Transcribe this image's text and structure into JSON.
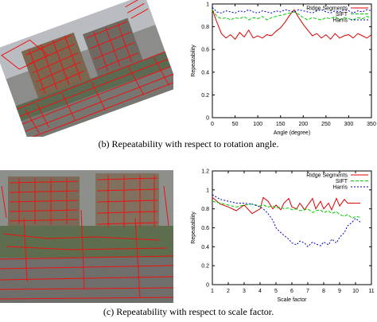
{
  "captions": {
    "b": "(b)  Repeatability with respect to rotation angle.",
    "c": "(c)  Repeatability with respect to scale factor."
  },
  "colors": {
    "ridge": "#dd0000",
    "sift": "#00cc00",
    "harris": "#0000cc"
  },
  "chart_data": [
    {
      "type": "line",
      "xlabel": "Angle (degree)",
      "ylabel": "Repeatability",
      "xlim": [
        0,
        350
      ],
      "ylim": [
        0,
        1
      ],
      "xticks": [
        "0",
        "50",
        "100",
        "150",
        "200",
        "250",
        "300",
        "350"
      ],
      "xtick_values": [
        0,
        50,
        100,
        150,
        200,
        250,
        300,
        350
      ],
      "yticks": [
        "0",
        "0.2",
        "0.4",
        "0.6",
        "0.8",
        "1"
      ],
      "ytick_values": [
        0,
        0.2,
        0.4,
        0.6,
        0.8,
        1.0
      ],
      "legend_position": "top-right",
      "x": [
        0,
        10,
        20,
        30,
        40,
        50,
        60,
        70,
        80,
        90,
        100,
        110,
        120,
        130,
        140,
        150,
        160,
        170,
        180,
        190,
        200,
        210,
        220,
        230,
        240,
        250,
        260,
        270,
        280,
        290,
        300,
        310,
        320,
        330,
        340,
        350
      ],
      "series": [
        {
          "name": "Ridge Segments",
          "color_key": "ridge",
          "dash": "",
          "values": [
            0.95,
            0.84,
            0.74,
            0.7,
            0.73,
            0.69,
            0.75,
            0.71,
            0.77,
            0.7,
            0.72,
            0.7,
            0.73,
            0.72,
            0.76,
            0.79,
            0.84,
            0.9,
            0.95,
            0.88,
            0.82,
            0.77,
            0.72,
            0.74,
            0.7,
            0.73,
            0.69,
            0.74,
            0.7,
            0.72,
            0.73,
            0.7,
            0.74,
            0.72,
            0.7,
            0.73
          ]
        },
        {
          "name": "SIFT",
          "color_key": "sift",
          "dash": "4,2",
          "values": [
            0.95,
            0.89,
            0.87,
            0.88,
            0.86,
            0.88,
            0.87,
            0.89,
            0.86,
            0.88,
            0.87,
            0.89,
            0.86,
            0.88,
            0.89,
            0.9,
            0.91,
            0.92,
            0.93,
            0.91,
            0.88,
            0.86,
            0.88,
            0.87,
            0.86,
            0.88,
            0.87,
            0.89,
            0.86,
            0.88,
            0.87,
            0.86,
            0.88,
            0.87,
            0.89,
            0.88
          ]
        },
        {
          "name": "Harris",
          "color_key": "harris",
          "dash": "2,2",
          "values": [
            0.97,
            0.93,
            0.92,
            0.94,
            0.93,
            0.92,
            0.94,
            0.93,
            0.95,
            0.93,
            0.92,
            0.94,
            0.93,
            0.92,
            0.94,
            0.93,
            0.95,
            0.94,
            0.93,
            0.95,
            0.94,
            0.93,
            0.92,
            0.94,
            0.95,
            0.93,
            0.92,
            0.94,
            0.93,
            0.95,
            0.94,
            0.92,
            0.94,
            0.93,
            0.95,
            0.94
          ]
        }
      ]
    },
    {
      "type": "line",
      "xlabel": "Scale factor",
      "ylabel": "Repeatability",
      "xlim": [
        1,
        11
      ],
      "ylim": [
        0,
        1.2
      ],
      "xticks": [
        "1",
        "2",
        "3",
        "4",
        "5",
        "6",
        "7",
        "8",
        "9",
        "10",
        "11"
      ],
      "xtick_values": [
        1,
        2,
        3,
        4,
        5,
        6,
        7,
        8,
        9,
        10,
        11
      ],
      "yticks": [
        "0",
        "0.2",
        "0.4",
        "0.6",
        "0.8",
        "1",
        "1.2"
      ],
      "ytick_values": [
        0,
        0.2,
        0.4,
        0.6,
        0.8,
        1.0,
        1.2
      ],
      "legend_position": "top-right",
      "x": [
        1.0,
        1.5,
        2.0,
        2.5,
        3.0,
        3.5,
        4.0,
        4.2,
        4.5,
        4.8,
        5.0,
        5.3,
        5.5,
        5.8,
        6.0,
        6.3,
        6.5,
        6.8,
        7.0,
        7.3,
        7.5,
        7.8,
        8.0,
        8.3,
        8.5,
        8.8,
        9.0,
        9.3,
        9.5,
        9.8,
        10.0,
        10.3
      ],
      "series": [
        {
          "name": "Ridge Segments",
          "color_key": "ridge",
          "dash": "",
          "values": [
            0.92,
            0.85,
            0.82,
            0.78,
            0.84,
            0.75,
            0.8,
            0.92,
            0.88,
            0.8,
            0.84,
            0.79,
            0.86,
            0.91,
            0.82,
            0.8,
            0.86,
            0.79,
            0.84,
            0.91,
            0.8,
            0.88,
            0.8,
            0.86,
            0.79,
            0.91,
            0.83,
            0.9,
            0.86,
            0.86,
            0.86,
            0.86
          ]
        },
        {
          "name": "SIFT",
          "color_key": "sift",
          "dash": "4,2",
          "values": [
            0.88,
            0.86,
            0.84,
            0.82,
            0.84,
            0.85,
            0.83,
            0.84,
            0.82,
            0.83,
            0.81,
            0.82,
            0.8,
            0.81,
            0.79,
            0.8,
            0.78,
            0.79,
            0.8,
            0.76,
            0.78,
            0.79,
            0.76,
            0.78,
            0.75,
            0.77,
            0.74,
            0.72,
            0.74,
            0.7,
            0.72,
            0.71
          ]
        },
        {
          "name": "Harris",
          "color_key": "harris",
          "dash": "2,2",
          "values": [
            0.95,
            0.9,
            0.88,
            0.86,
            0.86,
            0.85,
            0.82,
            0.8,
            0.75,
            0.68,
            0.6,
            0.55,
            0.52,
            0.48,
            0.44,
            0.42,
            0.46,
            0.44,
            0.4,
            0.45,
            0.43,
            0.41,
            0.45,
            0.42,
            0.48,
            0.44,
            0.5,
            0.55,
            0.62,
            0.66,
            0.7,
            0.66
          ]
        }
      ]
    }
  ]
}
